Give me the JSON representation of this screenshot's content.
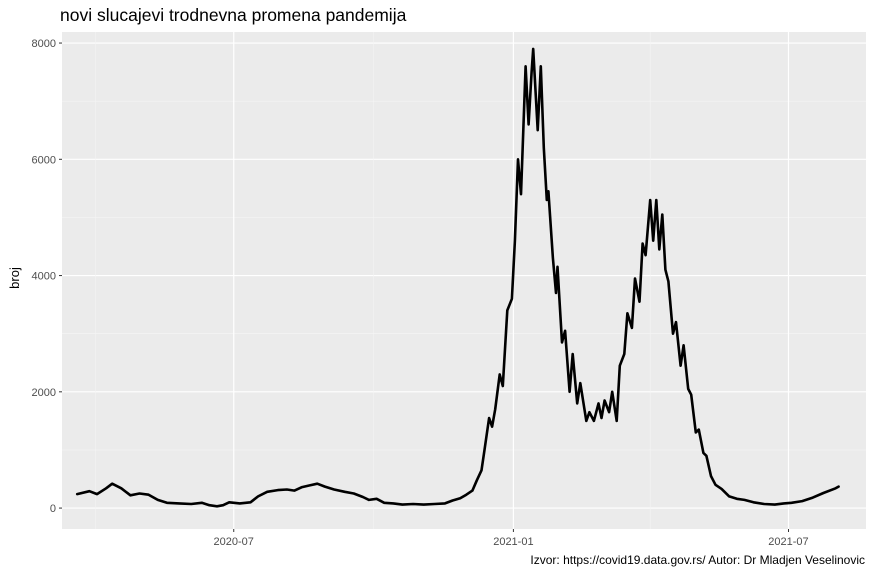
{
  "chart_data": {
    "type": "line",
    "title": "novi slucajevi trodnevna promena pandemija",
    "xlabel": "",
    "ylabel": "broj",
    "caption": "Izvor: https://covid19.data.gov.rs/ Autor: Dr Mladjen Veselinovic",
    "x_ticks": [
      "2020-07",
      "2021-01",
      "2021-07"
    ],
    "y_ticks": [
      "0",
      "2000",
      "4000",
      "6000",
      "8000"
    ],
    "xlim": [
      "2020-03-10",
      "2021-08-21"
    ],
    "ylim": [
      -360,
      8190
    ],
    "grid": true,
    "series": [
      {
        "color": "#000000",
        "points": [
          [
            "2020-03-20",
            240
          ],
          [
            "2020-03-28",
            290
          ],
          [
            "2020-04-02",
            240
          ],
          [
            "2020-04-08",
            340
          ],
          [
            "2020-04-12",
            420
          ],
          [
            "2020-04-18",
            340
          ],
          [
            "2020-04-24",
            220
          ],
          [
            "2020-04-30",
            250
          ],
          [
            "2020-05-06",
            230
          ],
          [
            "2020-05-12",
            140
          ],
          [
            "2020-05-18",
            90
          ],
          [
            "2020-05-26",
            80
          ],
          [
            "2020-06-03",
            70
          ],
          [
            "2020-06-10",
            90
          ],
          [
            "2020-06-15",
            50
          ],
          [
            "2020-06-20",
            30
          ],
          [
            "2020-06-24",
            50
          ],
          [
            "2020-06-28",
            100
          ],
          [
            "2020-07-05",
            80
          ],
          [
            "2020-07-12",
            100
          ],
          [
            "2020-07-17",
            200
          ],
          [
            "2020-07-23",
            280
          ],
          [
            "2020-07-30",
            310
          ],
          [
            "2020-08-05",
            320
          ],
          [
            "2020-08-10",
            300
          ],
          [
            "2020-08-15",
            360
          ],
          [
            "2020-08-20",
            390
          ],
          [
            "2020-08-25",
            420
          ],
          [
            "2020-08-30",
            370
          ],
          [
            "2020-09-05",
            320
          ],
          [
            "2020-09-12",
            280
          ],
          [
            "2020-09-18",
            250
          ],
          [
            "2020-09-24",
            190
          ],
          [
            "2020-09-28",
            140
          ],
          [
            "2020-10-03",
            160
          ],
          [
            "2020-10-08",
            90
          ],
          [
            "2020-10-14",
            80
          ],
          [
            "2020-10-20",
            60
          ],
          [
            "2020-10-27",
            70
          ],
          [
            "2020-11-03",
            60
          ],
          [
            "2020-11-10",
            70
          ],
          [
            "2020-11-17",
            80
          ],
          [
            "2020-11-22",
            130
          ],
          [
            "2020-11-27",
            170
          ],
          [
            "2020-12-01",
            230
          ],
          [
            "2020-12-05",
            300
          ],
          [
            "2020-12-08",
            480
          ],
          [
            "2020-12-11",
            650
          ],
          [
            "2020-12-13",
            1000
          ],
          [
            "2020-12-16",
            1550
          ],
          [
            "2020-12-18",
            1400
          ],
          [
            "2020-12-20",
            1700
          ],
          [
            "2020-12-23",
            2300
          ],
          [
            "2020-12-25",
            2100
          ],
          [
            "2020-12-28",
            3400
          ],
          [
            "2020-12-31",
            3600
          ],
          [
            "2021-01-02",
            4600
          ],
          [
            "2021-01-04",
            6000
          ],
          [
            "2021-01-06",
            5400
          ],
          [
            "2021-01-09",
            7600
          ],
          [
            "2021-01-11",
            6600
          ],
          [
            "2021-01-13",
            7500
          ],
          [
            "2021-01-14",
            7900
          ],
          [
            "2021-01-17",
            6500
          ],
          [
            "2021-01-19",
            7600
          ],
          [
            "2021-01-21",
            6200
          ],
          [
            "2021-01-23",
            5300
          ],
          [
            "2021-01-24",
            5450
          ],
          [
            "2021-01-27",
            4300
          ],
          [
            "2021-01-29",
            3700
          ],
          [
            "2021-01-30",
            4150
          ],
          [
            "2021-02-02",
            2850
          ],
          [
            "2021-02-04",
            3050
          ],
          [
            "2021-02-07",
            2000
          ],
          [
            "2021-02-09",
            2650
          ],
          [
            "2021-02-12",
            1800
          ],
          [
            "2021-02-14",
            2150
          ],
          [
            "2021-02-18",
            1500
          ],
          [
            "2021-02-20",
            1650
          ],
          [
            "2021-02-23",
            1500
          ],
          [
            "2021-02-26",
            1800
          ],
          [
            "2021-02-28",
            1550
          ],
          [
            "2021-03-02",
            1850
          ],
          [
            "2021-03-05",
            1650
          ],
          [
            "2021-03-07",
            2000
          ],
          [
            "2021-03-10",
            1500
          ],
          [
            "2021-03-12",
            2450
          ],
          [
            "2021-03-15",
            2650
          ],
          [
            "2021-03-17",
            3350
          ],
          [
            "2021-03-20",
            3100
          ],
          [
            "2021-03-22",
            3950
          ],
          [
            "2021-03-25",
            3550
          ],
          [
            "2021-03-27",
            4550
          ],
          [
            "2021-03-29",
            4350
          ],
          [
            "2021-04-01",
            5300
          ],
          [
            "2021-04-03",
            4600
          ],
          [
            "2021-04-05",
            5300
          ],
          [
            "2021-04-07",
            4450
          ],
          [
            "2021-04-09",
            5050
          ],
          [
            "2021-04-11",
            4100
          ],
          [
            "2021-04-13",
            3900
          ],
          [
            "2021-04-16",
            3000
          ],
          [
            "2021-04-18",
            3200
          ],
          [
            "2021-04-21",
            2450
          ],
          [
            "2021-04-23",
            2800
          ],
          [
            "2021-04-26",
            2050
          ],
          [
            "2021-04-28",
            1950
          ],
          [
            "2021-05-01",
            1300
          ],
          [
            "2021-05-03",
            1350
          ],
          [
            "2021-05-06",
            950
          ],
          [
            "2021-05-08",
            900
          ],
          [
            "2021-05-11",
            550
          ],
          [
            "2021-05-14",
            400
          ],
          [
            "2021-05-18",
            330
          ],
          [
            "2021-05-23",
            200
          ],
          [
            "2021-05-28",
            160
          ],
          [
            "2021-06-02",
            140
          ],
          [
            "2021-06-08",
            100
          ],
          [
            "2021-06-15",
            70
          ],
          [
            "2021-06-22",
            60
          ],
          [
            "2021-06-28",
            80
          ],
          [
            "2021-07-03",
            90
          ],
          [
            "2021-07-10",
            120
          ],
          [
            "2021-07-17",
            180
          ],
          [
            "2021-07-24",
            260
          ],
          [
            "2021-08-01",
            340
          ],
          [
            "2021-08-03",
            370
          ]
        ]
      }
    ]
  }
}
